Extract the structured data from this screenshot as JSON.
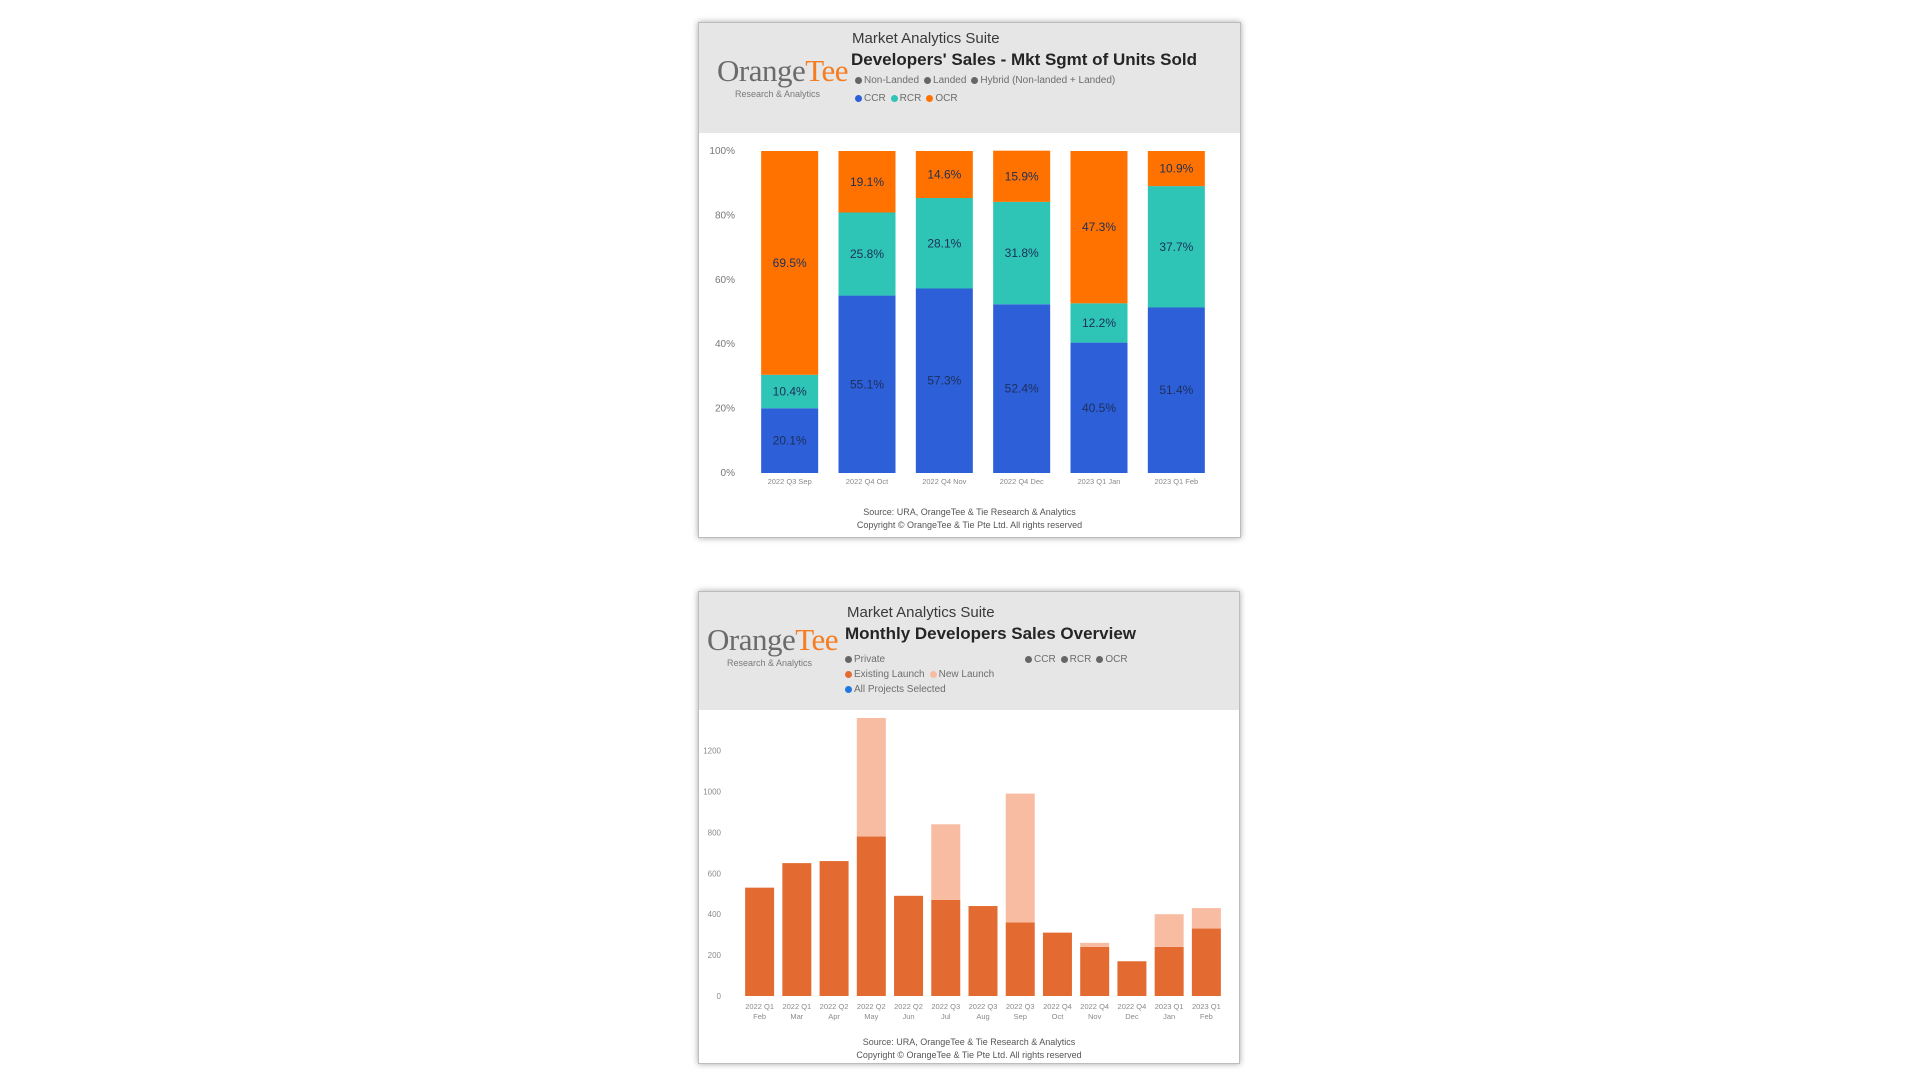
{
  "colors": {
    "ccr": "#2d5fd8",
    "rcr": "#2ec4b6",
    "ocr": "#ff7200",
    "existing_launch": "#e36b32",
    "new_launch": "#f7bca1",
    "all_projects": "#1f77e0",
    "legend_grey": "#666666"
  },
  "chart1": {
    "logo": {
      "orange": "Orange",
      "tee": "Tee",
      "sub": "Research & Analytics"
    },
    "suite": "Market Analytics Suite",
    "title": "Developers' Sales - Mkt Sgmt of Units Sold",
    "legend_row1": [
      "Non-Landed",
      "Landed",
      "Hybrid (Non-landed + Landed)"
    ],
    "legend_row2": [
      "CCR",
      "RCR",
      "OCR"
    ],
    "footer_source": "Source: URA, OrangeTee & Tie Research & Analytics",
    "footer_copyright": "Copyright © OrangeTee & Tie Pte Ltd. All rights reserved"
  },
  "chart2": {
    "logo": {
      "orange": "Orange",
      "tee": "Tee",
      "sub": "Research & Analytics"
    },
    "suite": "Market Analytics Suite",
    "title": "Monthly Developers Sales Overview",
    "legend_private": "Private",
    "legend_regions": [
      "CCR",
      "RCR",
      "OCR"
    ],
    "legend_launch": [
      "Existing Launch",
      "New Launch"
    ],
    "legend_selected": "All Projects Selected",
    "footer_source": "Source: URA, OrangeTee & Tie Research & Analytics",
    "footer_copyright": "Copyright © OrangeTee & Tie Pte Ltd. All rights reserved"
  },
  "chart_data": [
    {
      "type": "bar",
      "stacked": true,
      "percent": true,
      "title": "Developers' Sales - Mkt Sgmt of Units Sold",
      "categories": [
        "2022 Q3 Sep",
        "2022 Q4 Oct",
        "2022 Q4 Nov",
        "2022 Q4 Dec",
        "2023 Q1 Jan",
        "2023 Q1 Feb"
      ],
      "series": [
        {
          "name": "CCR",
          "values": [
            20.1,
            55.1,
            57.3,
            52.4,
            40.5,
            51.4
          ]
        },
        {
          "name": "RCR",
          "values": [
            10.4,
            25.8,
            28.1,
            31.8,
            12.2,
            37.7
          ]
        },
        {
          "name": "OCR",
          "values": [
            69.5,
            19.1,
            14.6,
            15.9,
            47.3,
            10.9
          ]
        }
      ],
      "data_labels": [
        [
          "20.1%",
          "55.1%",
          "57.3%",
          "52.4%",
          "40.5%",
          "51.4%"
        ],
        [
          "10.4%",
          "25.8%",
          "28.1%",
          "31.8%",
          "12.2%",
          "37.7%"
        ],
        [
          "69.5%",
          "19.1%",
          "14.6%",
          "15.9%",
          "47.3%",
          "10.9%"
        ]
      ],
      "yticks": [
        "0%",
        "20%",
        "40%",
        "60%",
        "80%",
        "100%"
      ],
      "ylim": [
        0,
        100
      ],
      "grid": false
    },
    {
      "type": "bar",
      "stacked": true,
      "title": "Monthly Developers Sales Overview",
      "categories": [
        [
          "2022 Q1",
          "Feb"
        ],
        [
          "2022 Q1",
          "Mar"
        ],
        [
          "2022 Q2",
          "Apr"
        ],
        [
          "2022 Q2",
          "May"
        ],
        [
          "2022 Q2",
          "Jun"
        ],
        [
          "2022 Q3",
          "Jul"
        ],
        [
          "2022 Q3",
          "Aug"
        ],
        [
          "2022 Q3",
          "Sep"
        ],
        [
          "2022 Q4",
          "Oct"
        ],
        [
          "2022 Q4",
          "Nov"
        ],
        [
          "2022 Q4",
          "Dec"
        ],
        [
          "2023 Q1",
          "Jan"
        ],
        [
          "2023 Q1",
          "Feb"
        ]
      ],
      "series": [
        {
          "name": "Existing Launch",
          "values": [
            530,
            650,
            660,
            780,
            490,
            470,
            440,
            360,
            310,
            240,
            170,
            240,
            330
          ]
        },
        {
          "name": "New Launch",
          "values": [
            0,
            0,
            0,
            580,
            0,
            370,
            0,
            630,
            0,
            20,
            0,
            160,
            100
          ]
        }
      ],
      "yticks": [
        "0",
        "200",
        "400",
        "600",
        "800",
        "1000",
        "1200"
      ],
      "ylim": [
        0,
        1350
      ],
      "grid": false
    }
  ]
}
